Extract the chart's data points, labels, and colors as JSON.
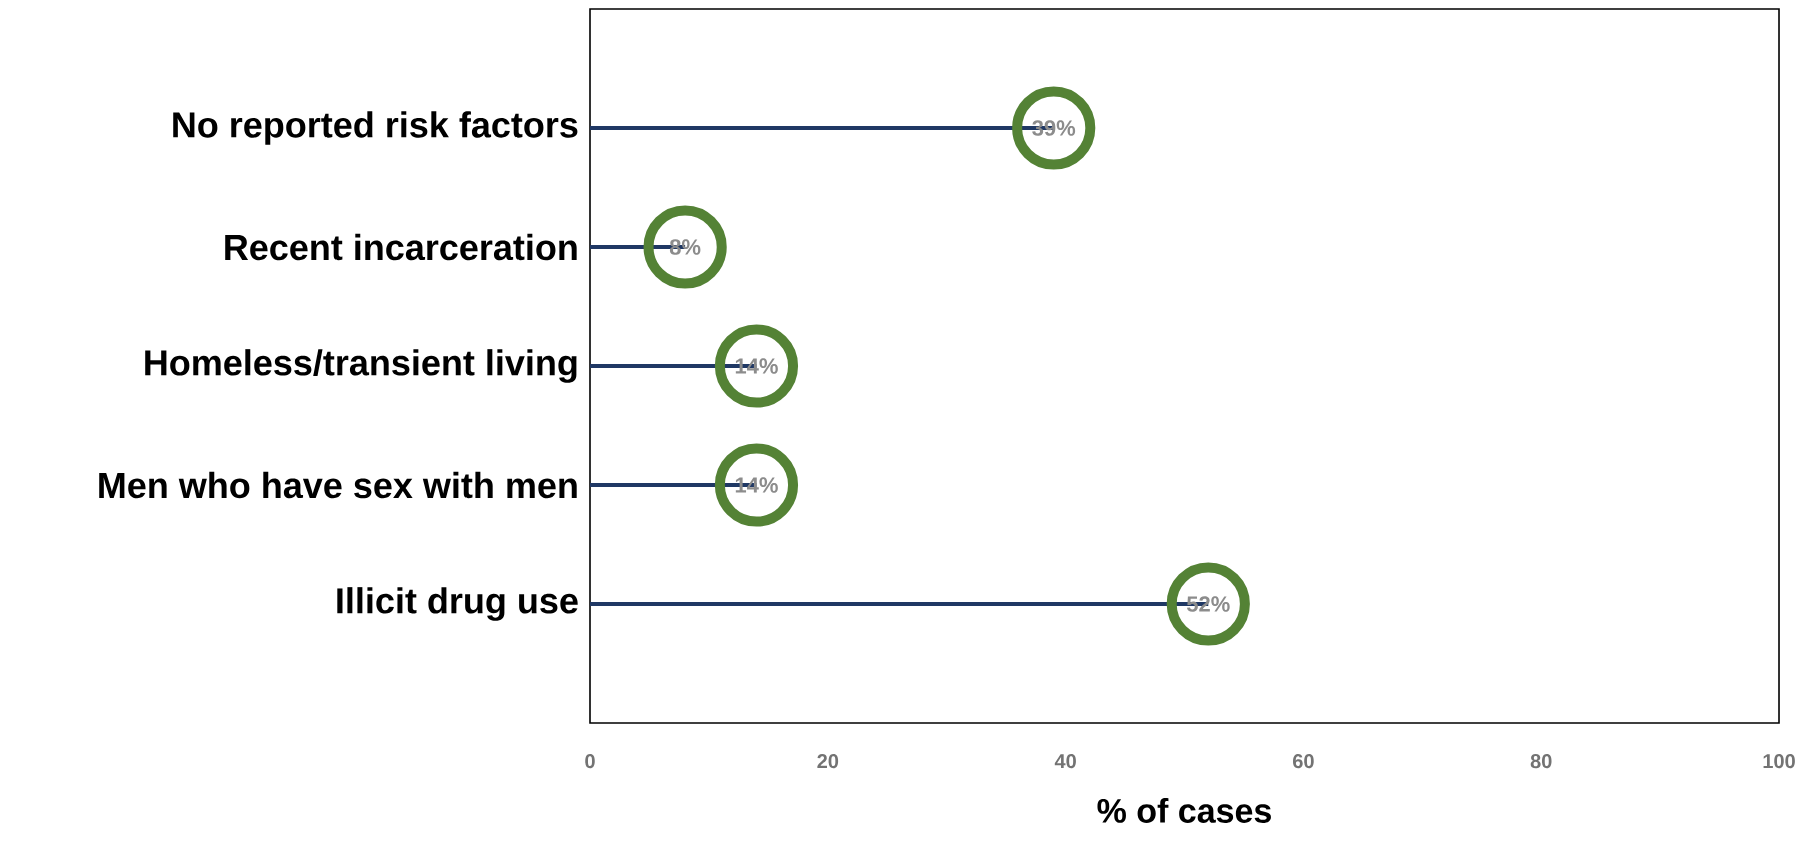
{
  "chart_data": {
    "type": "lollipop",
    "orientation": "horizontal",
    "categories": [
      "No reported risk factors",
      "Recent incarceration",
      "Homeless/transient living",
      "Men who have sex with men",
      "Illicit drug use"
    ],
    "values": [
      39,
      8,
      14,
      14,
      52
    ],
    "value_labels": [
      "39%",
      "8%",
      "14%",
      "14%",
      "52%"
    ],
    "color": "#548235",
    "marker": "circle",
    "xlabel": "% of cases",
    "xlim": [
      0,
      100
    ],
    "xticks": [
      0,
      20,
      40,
      60,
      80,
      100
    ]
  }
}
